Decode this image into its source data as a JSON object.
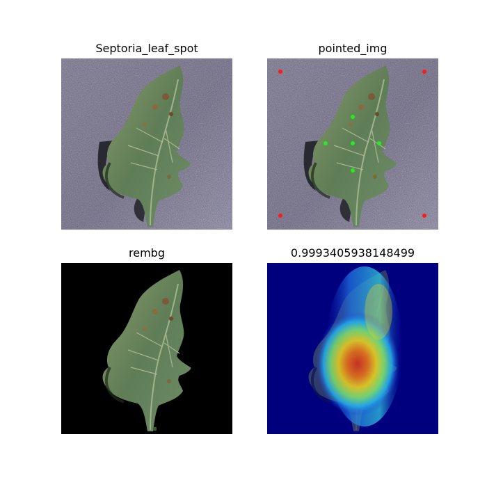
{
  "panels": [
    {
      "title": "Septoria_leaf_spot"
    },
    {
      "title": "pointed_img"
    },
    {
      "title": "rembg"
    },
    {
      "title": "0.9993405938148499"
    }
  ],
  "colors": {
    "background_gray": "#9a96b0",
    "leaf_green": "#6f8a62",
    "point_red": "#ff1a1a",
    "point_green": "#22ee22",
    "heatmap_bg": "#00007f"
  }
}
